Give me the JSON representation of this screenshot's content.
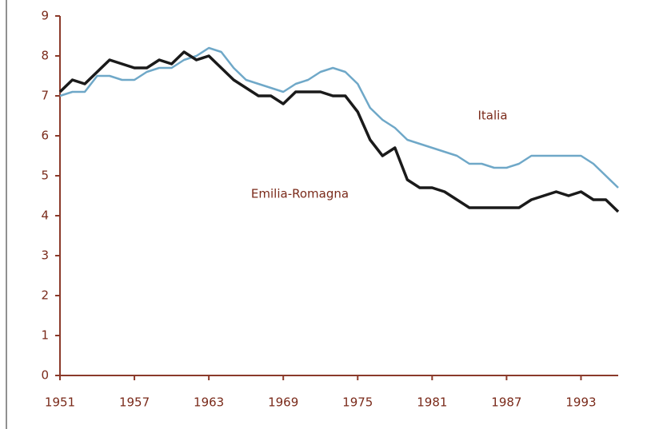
{
  "chart_data": {
    "type": "line",
    "x": [
      1951,
      1952,
      1953,
      1954,
      1955,
      1956,
      1957,
      1958,
      1959,
      1960,
      1961,
      1962,
      1963,
      1964,
      1965,
      1966,
      1967,
      1968,
      1969,
      1970,
      1971,
      1972,
      1973,
      1974,
      1975,
      1976,
      1977,
      1978,
      1979,
      1980,
      1981,
      1982,
      1983,
      1984,
      1985,
      1986,
      1987,
      1988,
      1989,
      1990,
      1991,
      1992,
      1993,
      1994,
      1995,
      1996
    ],
    "series": [
      {
        "name": "Italia",
        "color": "#6fa8c8",
        "values": [
          7.0,
          7.1,
          7.1,
          7.5,
          7.5,
          7.4,
          7.4,
          7.6,
          7.7,
          7.7,
          7.9,
          8.0,
          8.2,
          8.1,
          7.7,
          7.4,
          7.3,
          7.2,
          7.1,
          7.3,
          7.4,
          7.6,
          7.7,
          7.6,
          7.3,
          6.7,
          6.4,
          6.2,
          5.9,
          5.8,
          5.7,
          5.6,
          5.5,
          5.3,
          5.3,
          5.2,
          5.2,
          5.3,
          5.5,
          5.5,
          5.5,
          5.5,
          5.5,
          5.3,
          5.0,
          4.7
        ]
      },
      {
        "name": "Emilia-Romagna",
        "color": "#1a1a1a",
        "values": [
          7.1,
          7.4,
          7.3,
          7.6,
          7.9,
          7.8,
          7.7,
          7.7,
          7.9,
          7.8,
          8.1,
          7.9,
          8.0,
          7.7,
          7.4,
          7.2,
          7.0,
          7.0,
          6.8,
          7.1,
          7.1,
          7.1,
          7.0,
          7.0,
          6.6,
          5.9,
          5.5,
          5.7,
          4.9,
          4.7,
          4.7,
          4.6,
          4.4,
          4.2,
          4.2,
          4.2,
          4.2,
          4.2,
          4.4,
          4.5,
          4.6,
          4.5,
          4.6,
          4.4,
          4.4,
          4.1
        ]
      }
    ],
    "xlim": [
      1951,
      1996
    ],
    "xticks": [
      1951,
      1957,
      1963,
      1969,
      1975,
      1981,
      1987,
      1993
    ],
    "ylim": [
      0,
      9
    ],
    "yticks": [
      0,
      1,
      2,
      3,
      4,
      5,
      6,
      7,
      8,
      9
    ]
  }
}
